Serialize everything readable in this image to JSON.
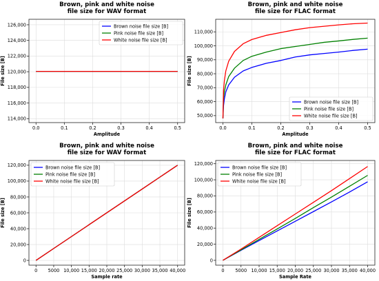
{
  "chart_data": [
    {
      "type": "line",
      "title": "Brown, pink and white noise\nfile size for WAV format",
      "xlabel": "Amplitude",
      "ylabel": "File size [B]",
      "xlim": [
        -0.025,
        0.525
      ],
      "ylim": [
        113500,
        126700
      ],
      "xticks": [
        0.0,
        0.1,
        0.2,
        0.3,
        0.4,
        0.5
      ],
      "xtick_labels": [
        "0.0",
        "0.1",
        "0.2",
        "0.3",
        "0.4",
        "0.5"
      ],
      "yticks": [
        114000,
        116000,
        118000,
        120000,
        122000,
        124000,
        126000
      ],
      "ytick_labels": [
        "114,000",
        "116,000",
        "118,000",
        "120,000",
        "122,000",
        "124,000",
        "126,000"
      ],
      "grid": true,
      "legend_position": "top-right",
      "x": [
        0.0,
        0.05,
        0.1,
        0.15,
        0.2,
        0.25,
        0.3,
        0.35,
        0.4,
        0.45,
        0.5
      ],
      "series": [
        {
          "name": "Brown noise file size [B]",
          "color": "#0000ff",
          "values": [
            120044,
            120044,
            120044,
            120044,
            120044,
            120044,
            120044,
            120044,
            120044,
            120044,
            120044
          ]
        },
        {
          "name": "Pink noise file size [B]",
          "color": "#008000",
          "values": [
            120044,
            120044,
            120044,
            120044,
            120044,
            120044,
            120044,
            120044,
            120044,
            120044,
            120044
          ]
        },
        {
          "name": "White noise file size [B]",
          "color": "#ff0000",
          "values": [
            120044,
            120044,
            120044,
            120044,
            120044,
            120044,
            120044,
            120044,
            120044,
            120044,
            120044
          ]
        }
      ]
    },
    {
      "type": "line",
      "title": "Brown, pink and white noise\nfile size for FLAC format",
      "xlabel": "Amplitude",
      "ylabel": "File size [B]",
      "xlim": [
        -0.025,
        0.525
      ],
      "ylim": [
        45000,
        119000
      ],
      "xticks": [
        0.0,
        0.1,
        0.2,
        0.3,
        0.4,
        0.5
      ],
      "xtick_labels": [
        "0.0",
        "0.1",
        "0.2",
        "0.3",
        "0.4",
        "0.5"
      ],
      "yticks": [
        50000,
        60000,
        70000,
        80000,
        90000,
        100000,
        110000
      ],
      "ytick_labels": [
        "50,000",
        "60,000",
        "70,000",
        "80,000",
        "90,000",
        "100,000",
        "110,000"
      ],
      "grid": true,
      "legend_position": "bottom-right",
      "x": [
        0.0,
        0.002,
        0.005,
        0.01,
        0.02,
        0.04,
        0.07,
        0.1,
        0.15,
        0.2,
        0.25,
        0.3,
        0.35,
        0.4,
        0.45,
        0.5
      ],
      "series": [
        {
          "name": "Brown noise file size [B]",
          "color": "#0000ff",
          "values": [
            48000,
            57000,
            62000,
            67000,
            72000,
            77500,
            82000,
            84500,
            87500,
            89500,
            92000,
            93500,
            94500,
            95500,
            96700,
            97600
          ]
        },
        {
          "name": "Pink noise file size [B]",
          "color": "#008000",
          "values": [
            48000,
            62000,
            67000,
            72000,
            78000,
            84000,
            89500,
            92500,
            95500,
            98000,
            99500,
            101000,
            102500,
            103500,
            104600,
            105500
          ]
        },
        {
          "name": "White noise file size [B]",
          "color": "#ff0000",
          "values": [
            48000,
            68000,
            75000,
            82000,
            89000,
            96000,
            101500,
            104500,
            107500,
            109500,
            111500,
            113000,
            114000,
            115000,
            115800,
            116300
          ]
        }
      ]
    },
    {
      "type": "line",
      "title": "Brown, pink and white noise\nfile size for WAV format",
      "xlabel": "Sample rate",
      "ylabel": "File size [B]",
      "xlim": [
        -2000,
        42000
      ],
      "ylim": [
        -6000,
        126000
      ],
      "xticks": [
        0,
        5000,
        10000,
        15000,
        20000,
        25000,
        30000,
        35000,
        40000
      ],
      "xtick_labels": [
        "0",
        "5000",
        "10,000",
        "15,000",
        "20,000",
        "25,000",
        "30,000",
        "35,000",
        "40,000"
      ],
      "yticks": [
        0,
        20000,
        40000,
        60000,
        80000,
        100000,
        120000
      ],
      "ytick_labels": [
        "0",
        "20,000",
        "40,000",
        "60,000",
        "80,000",
        "100,000",
        "120,000"
      ],
      "grid": true,
      "legend_position": "top-left",
      "x": [
        0,
        5000,
        10000,
        15000,
        20000,
        25000,
        30000,
        35000,
        40000
      ],
      "series": [
        {
          "name": "Brown noise file size [B]",
          "color": "#0000ff",
          "values": [
            44,
            15044,
            30044,
            45044,
            60044,
            75044,
            90044,
            105044,
            120044
          ]
        },
        {
          "name": "Pink noise file size [B]",
          "color": "#008000",
          "values": [
            44,
            15044,
            30044,
            45044,
            60044,
            75044,
            90044,
            105044,
            120044
          ]
        },
        {
          "name": "White noise file size [B]",
          "color": "#ff0000",
          "values": [
            44,
            15044,
            30044,
            45044,
            60044,
            75044,
            90044,
            105044,
            120044
          ]
        }
      ]
    },
    {
      "type": "line",
      "title": "Brown, pink and white noise\nfile size for FLAC format",
      "xlabel": "Sample Rate",
      "ylabel": "File size [B]",
      "xlim": [
        -2000,
        42000
      ],
      "ylim": [
        -6000,
        124000
      ],
      "xticks": [
        0,
        5000,
        10000,
        15000,
        20000,
        25000,
        30000,
        35000,
        40000
      ],
      "xtick_labels": [
        "0",
        "5000",
        "10,000",
        "15,000",
        "20,000",
        "25,000",
        "30,000",
        "35,000",
        "40,000"
      ],
      "yticks": [
        0,
        20000,
        40000,
        60000,
        80000,
        100000,
        120000
      ],
      "ytick_labels": [
        "0",
        "20,000",
        "40,000",
        "60,000",
        "80,000",
        "100,000",
        "120,000"
      ],
      "grid": true,
      "legend_position": "top-left",
      "x": [
        0,
        5000,
        10000,
        15000,
        20000,
        25000,
        30000,
        35000,
        40000
      ],
      "series": [
        {
          "name": "Brown noise file size [B]",
          "color": "#0000ff",
          "values": [
            0,
            12500,
            24500,
            36500,
            48500,
            60500,
            72500,
            84800,
            97500
          ]
        },
        {
          "name": "Pink noise file size [B]",
          "color": "#008000",
          "values": [
            0,
            13000,
            26000,
            39000,
            52000,
            65500,
            78500,
            92000,
            105500
          ]
        },
        {
          "name": "White noise file size [B]",
          "color": "#ff0000",
          "values": [
            0,
            14000,
            28500,
            43000,
            57500,
            72000,
            86500,
            101500,
            116500
          ]
        }
      ]
    }
  ]
}
